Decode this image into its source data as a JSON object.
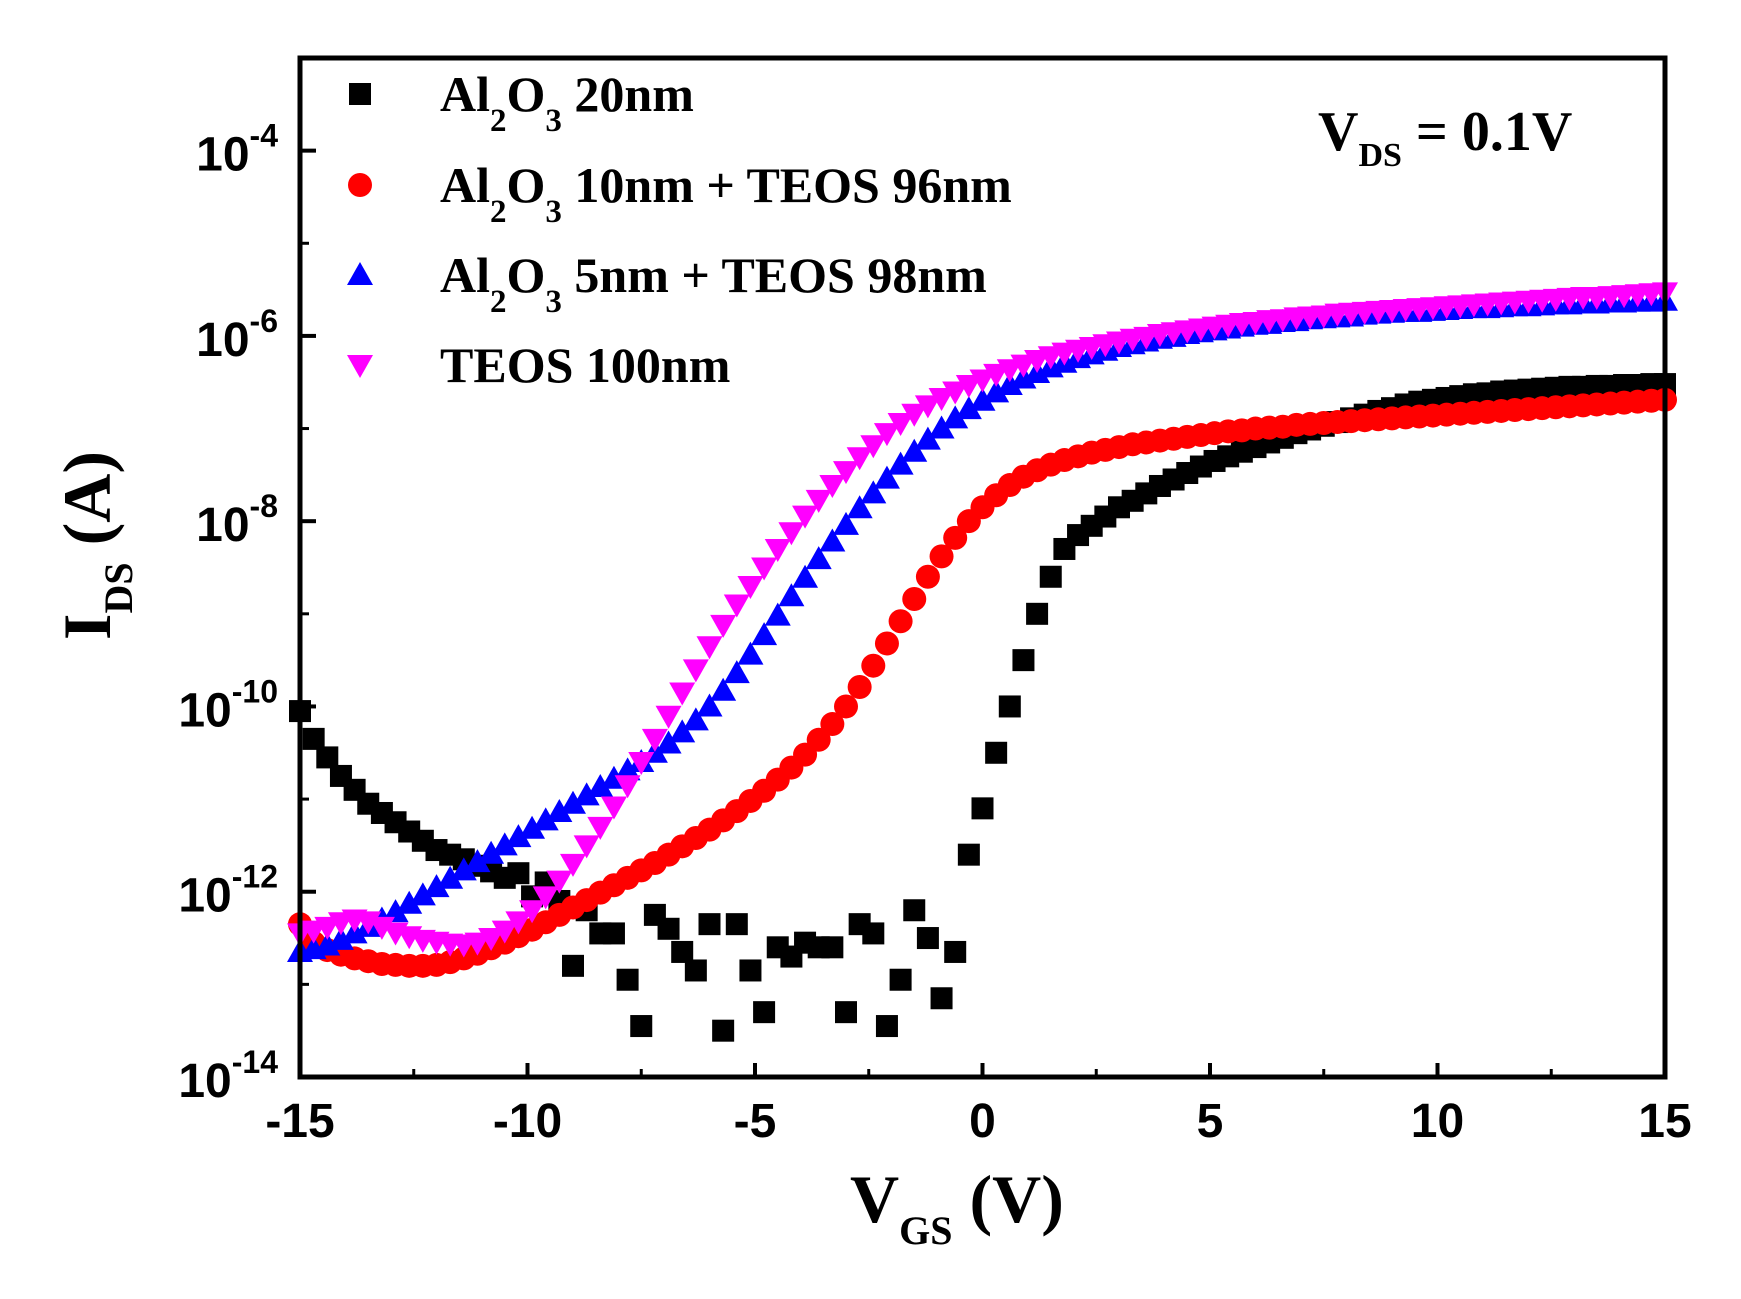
{
  "chart_data": {
    "type": "scatter",
    "title": "",
    "xlabel": {
      "main": "V",
      "sub": "GS",
      "unit": " (V)"
    },
    "ylabel": {
      "main": "I",
      "sub": "DS",
      "unit": " (A)"
    },
    "xlim": [
      -15,
      15
    ],
    "ylim_log10": [
      -14,
      -3
    ],
    "yscale": "log",
    "x_ticks": [
      -15,
      -10,
      -5,
      0,
      5,
      10,
      15
    ],
    "x_tick_labels": [
      "-15",
      "-10",
      "-5",
      "0",
      "5",
      "10",
      "15"
    ],
    "y_ticks_exp": [
      -14,
      -12,
      -10,
      -8,
      -6,
      -4
    ],
    "y_tick_base": "10",
    "y_tick_exps": [
      "-14",
      "-12",
      "-10",
      "-8",
      "-6",
      "-4"
    ],
    "annotation": {
      "main": "V",
      "sub": "DS",
      "rest": " = 0.1V"
    },
    "legend_position": "top-left",
    "series": [
      {
        "name": "Al2O3 20nm",
        "label_parts": [
          "Al",
          "2",
          "O",
          "3",
          " 20nm"
        ],
        "color": "#000000",
        "marker": "square",
        "x": [
          -15,
          -14.7,
          -14.4,
          -14.1,
          -13.8,
          -13.5,
          -13.2,
          -12.9,
          -12.6,
          -12.3,
          -12,
          -11.7,
          -11.4,
          -11.1,
          -10.8,
          -10.5,
          -10.2,
          -9.9,
          -9.6,
          -9.3,
          -9,
          -8.7,
          -8.4,
          -8.1,
          -7.8,
          -7.5,
          -7.2,
          -6.9,
          -6.6,
          -6.3,
          -6,
          -5.7,
          -5.4,
          -5.1,
          -4.8,
          -4.5,
          -4.2,
          -3.9,
          -3.6,
          -3.3,
          -3,
          -2.7,
          -2.4,
          -2.1,
          -1.8,
          -1.5,
          -1.2,
          -0.9,
          -0.6,
          -0.3,
          0,
          0.3,
          0.6,
          0.9,
          1.2,
          1.5,
          1.8,
          2.1,
          2.4,
          2.7,
          3,
          3.3,
          3.6,
          3.9,
          4.2,
          4.5,
          4.8,
          5.1,
          5.4,
          5.7,
          6,
          6.3,
          6.6,
          6.9,
          7.2,
          7.5,
          7.8,
          8.1,
          8.4,
          8.7,
          9,
          9.3,
          9.6,
          9.9,
          10.2,
          10.5,
          10.8,
          11.1,
          11.4,
          11.7,
          12,
          12.3,
          12.6,
          12.9,
          13.2,
          13.5,
          13.8,
          14.1,
          14.4,
          14.7,
          15
        ],
        "log10_y": [
          -10.05,
          -10.35,
          -10.55,
          -10.75,
          -10.9,
          -11.05,
          -11.15,
          -11.25,
          -11.35,
          -11.45,
          -11.55,
          -11.6,
          -11.65,
          -11.72,
          -11.78,
          -11.85,
          -11.8,
          -12.05,
          -11.9,
          -12.1,
          -12.8,
          -12.2,
          -12.45,
          -12.45,
          -12.95,
          -13.45,
          -12.25,
          -12.4,
          -12.65,
          -12.85,
          -12.35,
          -13.5,
          -12.35,
          -12.85,
          -13.3,
          -12.6,
          -12.7,
          -12.55,
          -12.6,
          -12.6,
          -13.3,
          -12.35,
          -12.45,
          -13.45,
          -12.95,
          -12.2,
          -12.5,
          -13.15,
          -12.65,
          -11.6,
          -11.1,
          -10.5,
          -10,
          -9.5,
          -9,
          -8.6,
          -8.3,
          -8.15,
          -8.05,
          -7.95,
          -7.85,
          -7.78,
          -7.7,
          -7.62,
          -7.55,
          -7.48,
          -7.41,
          -7.35,
          -7.3,
          -7.25,
          -7.2,
          -7.15,
          -7.1,
          -7.05,
          -7.01,
          -6.97,
          -6.93,
          -6.89,
          -6.85,
          -6.81,
          -6.78,
          -6.74,
          -6.71,
          -6.69,
          -6.67,
          -6.65,
          -6.63,
          -6.62,
          -6.6,
          -6.59,
          -6.58,
          -6.57,
          -6.56,
          -6.55,
          -6.55,
          -6.54,
          -6.54,
          -6.53,
          -6.53,
          -6.52,
          -6.52
        ]
      },
      {
        "name": "Al2O3 10nm + TEOS 96nm",
        "label_parts": [
          "Al",
          "2",
          "O",
          "3",
          " 10nm + TEOS 96nm"
        ],
        "color": "#ff0000",
        "marker": "circle",
        "x": [
          -15,
          -14.7,
          -14.4,
          -14.1,
          -13.8,
          -13.5,
          -13.2,
          -12.9,
          -12.6,
          -12.3,
          -12,
          -11.7,
          -11.4,
          -11.1,
          -10.8,
          -10.5,
          -10.2,
          -9.9,
          -9.6,
          -9.3,
          -9,
          -8.7,
          -8.4,
          -8.1,
          -7.8,
          -7.5,
          -7.2,
          -6.9,
          -6.6,
          -6.3,
          -6,
          -5.7,
          -5.4,
          -5.1,
          -4.8,
          -4.5,
          -4.2,
          -3.9,
          -3.6,
          -3.3,
          -3,
          -2.7,
          -2.4,
          -2.1,
          -1.8,
          -1.5,
          -1.2,
          -0.9,
          -0.6,
          -0.3,
          0,
          0.3,
          0.6,
          0.9,
          1.2,
          1.5,
          1.8,
          2.1,
          2.4,
          2.7,
          3,
          3.3,
          3.6,
          3.9,
          4.2,
          4.5,
          4.8,
          5.1,
          5.4,
          5.7,
          6,
          6.3,
          6.6,
          6.9,
          7.2,
          7.5,
          7.8,
          8.1,
          8.4,
          8.7,
          9,
          9.3,
          9.6,
          9.9,
          10.2,
          10.5,
          10.8,
          11.1,
          11.4,
          11.7,
          12,
          12.3,
          12.6,
          12.9,
          13.2,
          13.5,
          13.8,
          14.1,
          14.4,
          14.7,
          15
        ],
        "log10_y": [
          -12.35,
          -12.55,
          -12.63,
          -12.68,
          -12.72,
          -12.75,
          -12.78,
          -12.79,
          -12.8,
          -12.8,
          -12.79,
          -12.76,
          -12.72,
          -12.67,
          -12.61,
          -12.55,
          -12.48,
          -12.41,
          -12.33,
          -12.25,
          -12.17,
          -12.09,
          -12.01,
          -11.93,
          -11.85,
          -11.77,
          -11.69,
          -11.6,
          -11.51,
          -11.42,
          -11.33,
          -11.23,
          -11.13,
          -11.02,
          -10.91,
          -10.79,
          -10.66,
          -10.52,
          -10.36,
          -10.19,
          -10,
          -9.79,
          -9.56,
          -9.32,
          -9.08,
          -8.84,
          -8.6,
          -8.38,
          -8.18,
          -8.0,
          -7.85,
          -7.72,
          -7.61,
          -7.52,
          -7.45,
          -7.39,
          -7.34,
          -7.3,
          -7.26,
          -7.23,
          -7.2,
          -7.17,
          -7.15,
          -7.13,
          -7.11,
          -7.09,
          -7.07,
          -7.05,
          -7.03,
          -7.02,
          -7.0,
          -6.99,
          -6.98,
          -6.96,
          -6.95,
          -6.94,
          -6.93,
          -6.92,
          -6.91,
          -6.9,
          -6.89,
          -6.88,
          -6.87,
          -6.86,
          -6.85,
          -6.84,
          -6.83,
          -6.82,
          -6.81,
          -6.8,
          -6.79,
          -6.78,
          -6.77,
          -6.76,
          -6.75,
          -6.74,
          -6.73,
          -6.72,
          -6.71,
          -6.7,
          -6.69
        ]
      },
      {
        "name": "Al2O3 5nm + TEOS 98nm",
        "label_parts": [
          "Al",
          "2",
          "O",
          "3",
          " 5nm + TEOS 98nm"
        ],
        "color": "#0000ff",
        "marker": "triangle-up",
        "x": [
          -15,
          -14.7,
          -14.4,
          -14.1,
          -13.8,
          -13.5,
          -13.2,
          -12.9,
          -12.6,
          -12.3,
          -12,
          -11.7,
          -11.4,
          -11.1,
          -10.8,
          -10.5,
          -10.2,
          -9.9,
          -9.6,
          -9.3,
          -9,
          -8.7,
          -8.4,
          -8.1,
          -7.8,
          -7.5,
          -7.2,
          -6.9,
          -6.6,
          -6.3,
          -6,
          -5.7,
          -5.4,
          -5.1,
          -4.8,
          -4.5,
          -4.2,
          -3.9,
          -3.6,
          -3.3,
          -3,
          -2.7,
          -2.4,
          -2.1,
          -1.8,
          -1.5,
          -1.2,
          -0.9,
          -0.6,
          -0.3,
          0,
          0.3,
          0.6,
          0.9,
          1.2,
          1.5,
          1.8,
          2.1,
          2.4,
          2.7,
          3,
          3.3,
          3.6,
          3.9,
          4.2,
          4.5,
          4.8,
          5.1,
          5.4,
          5.7,
          6,
          6.3,
          6.6,
          6.9,
          7.2,
          7.5,
          7.8,
          8.1,
          8.4,
          8.7,
          9,
          9.3,
          9.6,
          9.9,
          10.2,
          10.5,
          10.8,
          11.1,
          11.4,
          11.7,
          12,
          12.3,
          12.6,
          12.9,
          13.2,
          13.5,
          13.8,
          14.1,
          14.4,
          14.7,
          15
        ],
        "log10_y": [
          -12.65,
          -12.62,
          -12.58,
          -12.52,
          -12.45,
          -12.38,
          -12.3,
          -12.22,
          -12.13,
          -12.04,
          -11.95,
          -11.86,
          -11.77,
          -11.68,
          -11.59,
          -11.5,
          -11.41,
          -11.32,
          -11.23,
          -11.14,
          -11.05,
          -10.96,
          -10.87,
          -10.78,
          -10.69,
          -10.6,
          -10.5,
          -10.4,
          -10.28,
          -10.15,
          -10.0,
          -9.83,
          -9.64,
          -9.44,
          -9.23,
          -9.02,
          -8.81,
          -8.61,
          -8.41,
          -8.22,
          -8.04,
          -7.86,
          -7.7,
          -7.54,
          -7.39,
          -7.25,
          -7.12,
          -7.0,
          -6.89,
          -6.79,
          -6.7,
          -6.61,
          -6.53,
          -6.46,
          -6.4,
          -6.34,
          -6.29,
          -6.24,
          -6.2,
          -6.16,
          -6.12,
          -6.09,
          -6.06,
          -6.03,
          -6.01,
          -5.98,
          -5.96,
          -5.94,
          -5.92,
          -5.9,
          -5.88,
          -5.87,
          -5.85,
          -5.84,
          -5.82,
          -5.81,
          -5.8,
          -5.79,
          -5.77,
          -5.76,
          -5.75,
          -5.74,
          -5.74,
          -5.73,
          -5.72,
          -5.71,
          -5.7,
          -5.7,
          -5.69,
          -5.68,
          -5.68,
          -5.67,
          -5.66,
          -5.66,
          -5.65,
          -5.65,
          -5.64,
          -5.64,
          -5.63,
          -5.63,
          -5.62
        ]
      },
      {
        "name": "TEOS 100nm",
        "label_parts": [
          "TEOS 100nm"
        ],
        "color": "#ff00ff",
        "marker": "triangle-down",
        "x": [
          -15,
          -14.7,
          -14.4,
          -14.1,
          -13.8,
          -13.5,
          -13.2,
          -12.9,
          -12.6,
          -12.3,
          -12,
          -11.7,
          -11.4,
          -11.1,
          -10.8,
          -10.5,
          -10.2,
          -9.9,
          -9.6,
          -9.3,
          -9,
          -8.7,
          -8.4,
          -8.1,
          -7.8,
          -7.5,
          -7.2,
          -6.9,
          -6.6,
          -6.3,
          -6,
          -5.7,
          -5.4,
          -5.1,
          -4.8,
          -4.5,
          -4.2,
          -3.9,
          -3.6,
          -3.3,
          -3,
          -2.7,
          -2.4,
          -2.1,
          -1.8,
          -1.5,
          -1.2,
          -0.9,
          -0.6,
          -0.3,
          0,
          0.3,
          0.6,
          0.9,
          1.2,
          1.5,
          1.8,
          2.1,
          2.4,
          2.7,
          3,
          3.3,
          3.6,
          3.9,
          4.2,
          4.5,
          4.8,
          5.1,
          5.4,
          5.7,
          6,
          6.3,
          6.6,
          6.9,
          7.2,
          7.5,
          7.8,
          8.1,
          8.4,
          8.7,
          9,
          9.3,
          9.6,
          9.9,
          10.2,
          10.5,
          10.8,
          11.1,
          11.4,
          11.7,
          12,
          12.3,
          12.6,
          12.9,
          13.2,
          13.5,
          13.8,
          14.1,
          14.4,
          14.7,
          15
        ],
        "log10_y": [
          -12.45,
          -12.42,
          -12.38,
          -12.33,
          -12.3,
          -12.32,
          -12.38,
          -12.44,
          -12.48,
          -12.52,
          -12.54,
          -12.56,
          -12.57,
          -12.55,
          -12.5,
          -12.42,
          -12.32,
          -12.2,
          -12.05,
          -11.88,
          -11.7,
          -11.5,
          -11.3,
          -11.08,
          -10.85,
          -10.6,
          -10.35,
          -10.1,
          -9.85,
          -9.6,
          -9.35,
          -9.12,
          -8.9,
          -8.7,
          -8.5,
          -8.3,
          -8.12,
          -7.94,
          -7.77,
          -7.61,
          -7.46,
          -7.31,
          -7.18,
          -7.05,
          -6.94,
          -6.84,
          -6.75,
          -6.67,
          -6.6,
          -6.53,
          -6.47,
          -6.41,
          -6.36,
          -6.31,
          -6.26,
          -6.22,
          -6.18,
          -6.15,
          -6.12,
          -6.09,
          -6.06,
          -6.03,
          -6.01,
          -5.98,
          -5.96,
          -5.94,
          -5.92,
          -5.9,
          -5.88,
          -5.86,
          -5.85,
          -5.83,
          -5.82,
          -5.8,
          -5.79,
          -5.78,
          -5.76,
          -5.75,
          -5.74,
          -5.73,
          -5.72,
          -5.71,
          -5.7,
          -5.69,
          -5.68,
          -5.67,
          -5.66,
          -5.65,
          -5.64,
          -5.63,
          -5.62,
          -5.61,
          -5.6,
          -5.59,
          -5.58,
          -5.58,
          -5.57,
          -5.56,
          -5.55,
          -5.54,
          -5.53
        ]
      }
    ]
  }
}
